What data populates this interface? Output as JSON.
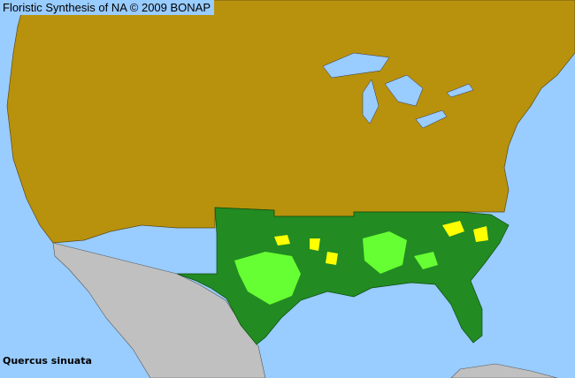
{
  "header": {
    "title": "Floristic Synthesis of NA © 2009 BONAP"
  },
  "species": {
    "name": "Quercus sinuata"
  },
  "colors": {
    "ocean": "#99ccff",
    "land_no_record": "#b8920c",
    "state_present": "#228b22",
    "county_present": "#66ff33",
    "county_rare": "#ffff00",
    "outside_region": "#c0c0c0"
  }
}
